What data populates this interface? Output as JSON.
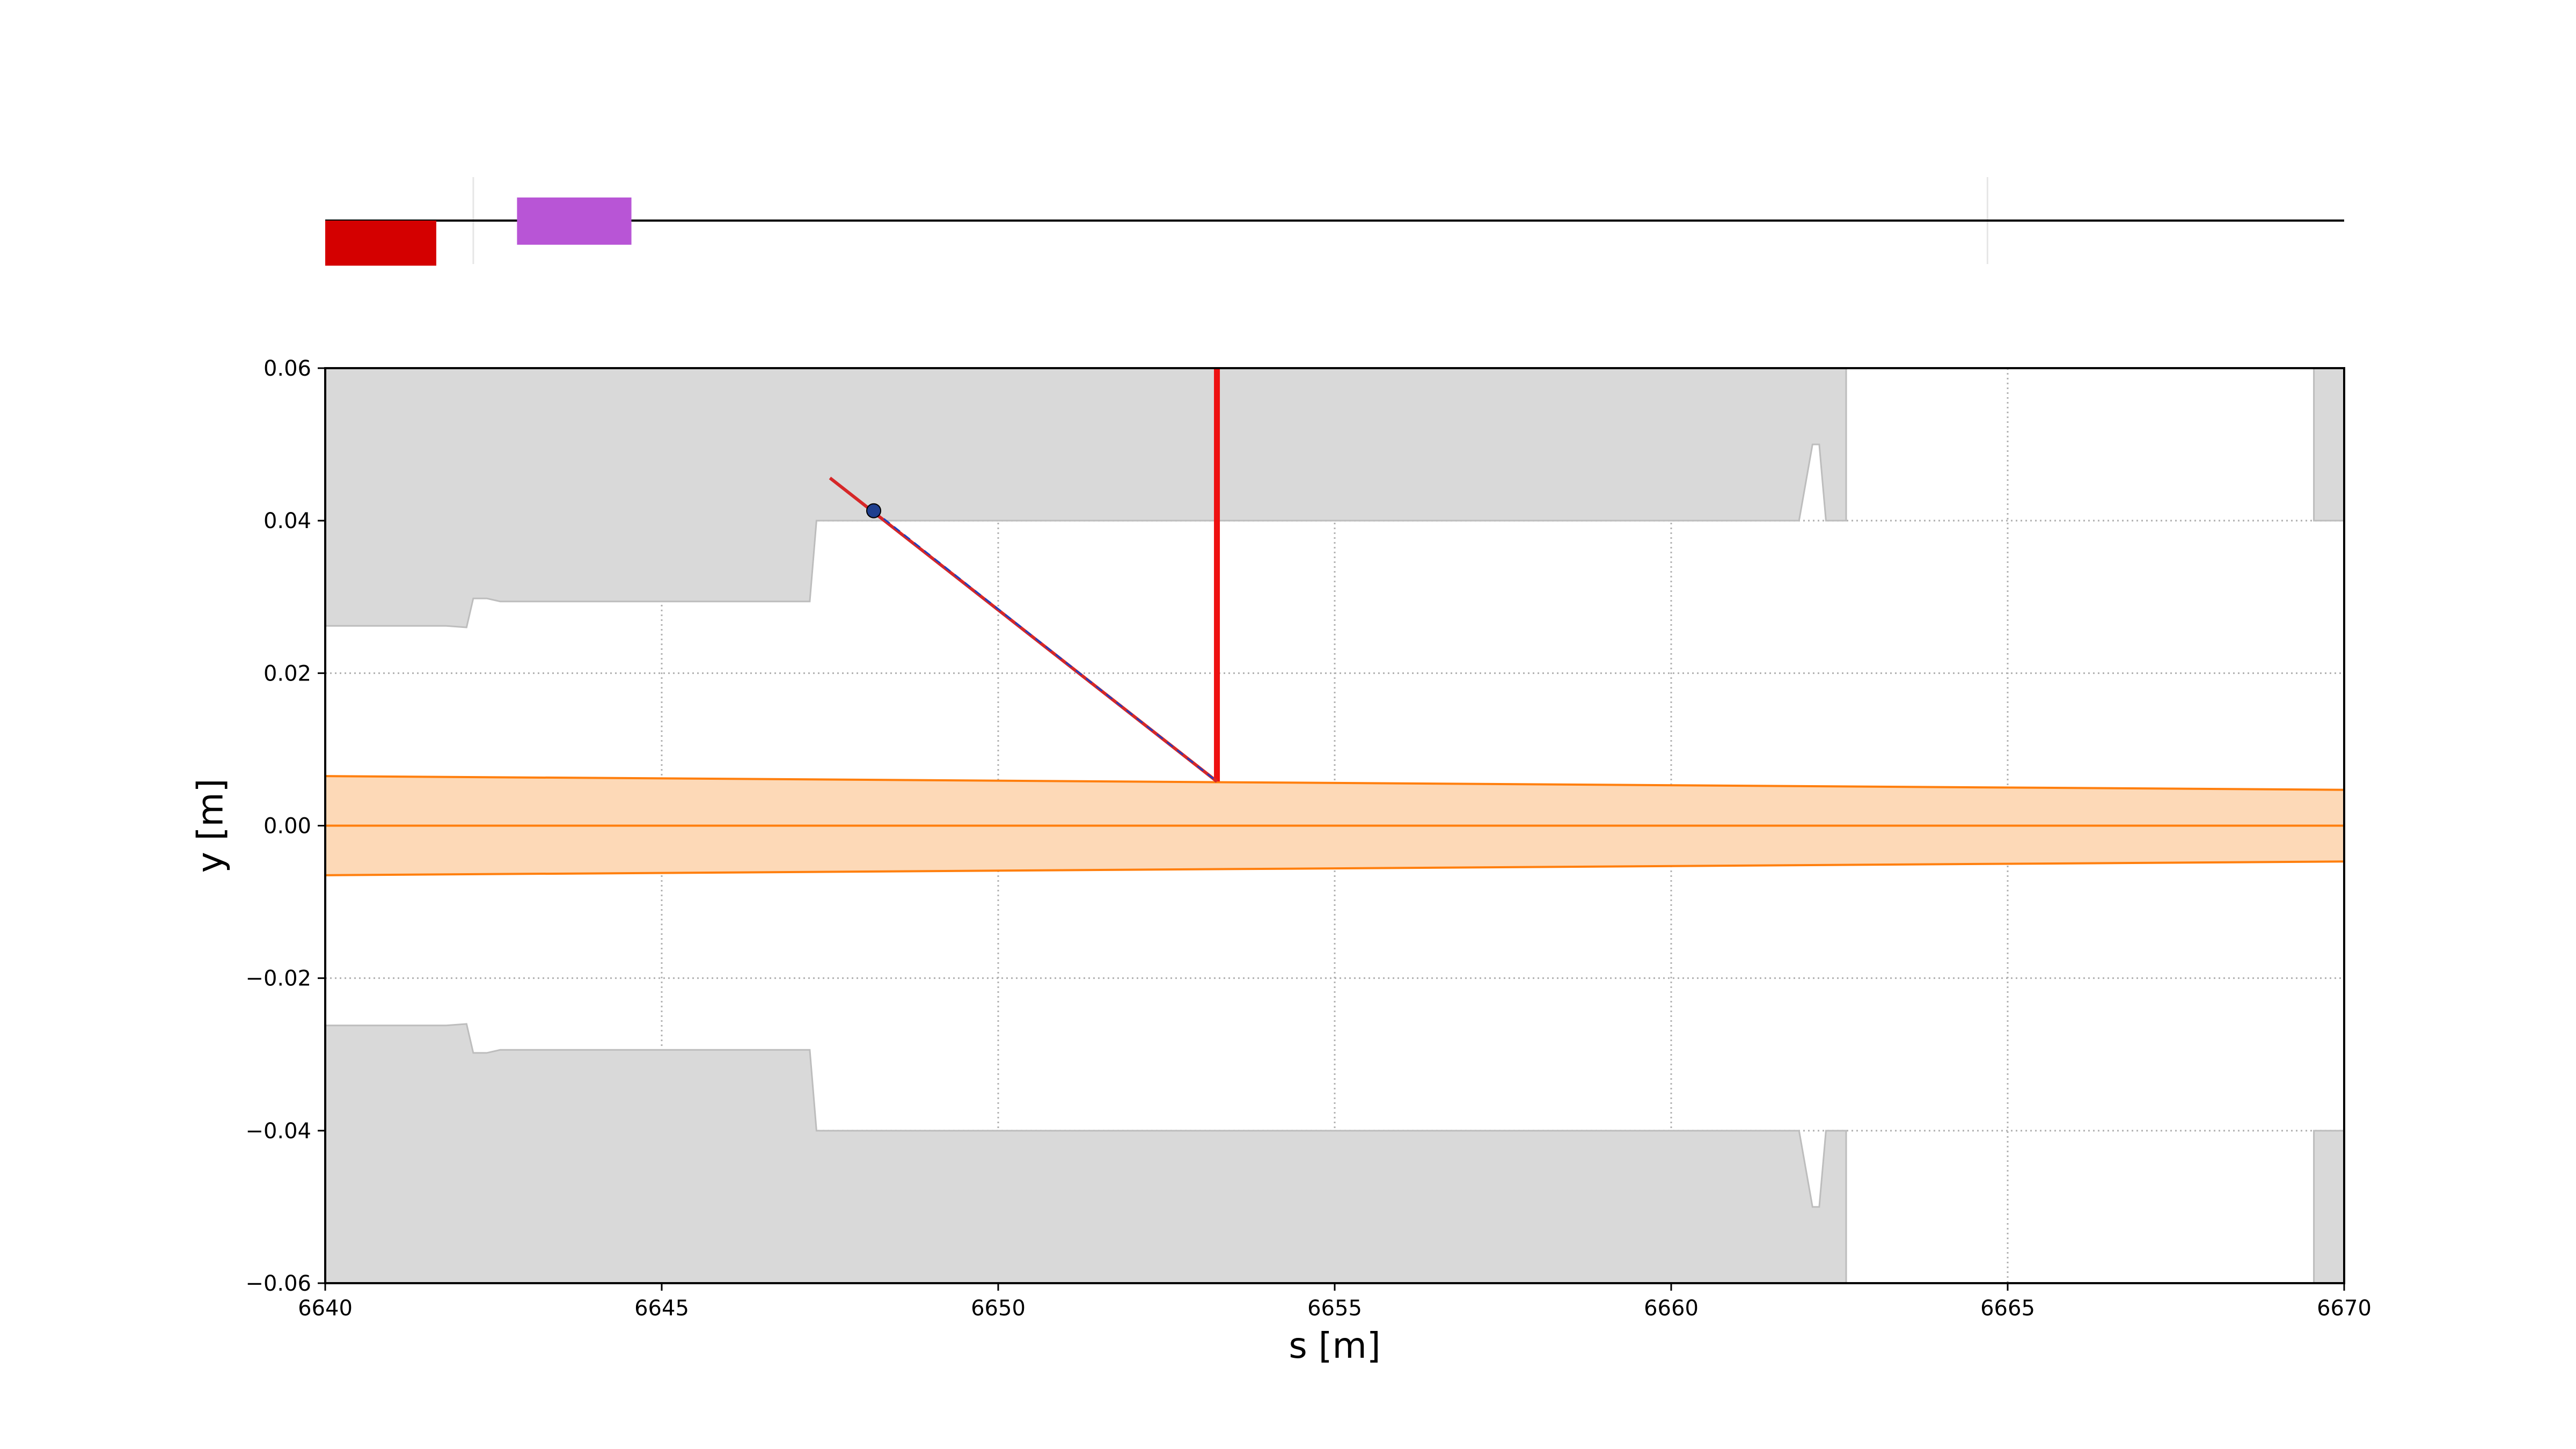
{
  "chart_data": [
    {
      "type": "schematic",
      "x_range": [
        6640,
        6670
      ],
      "elements": [
        {
          "name": "dipole",
          "s_start": 6640.0,
          "s_end": 6641.65,
          "side": "below",
          "color": "#d40000"
        },
        {
          "name": "sextupole",
          "s_start": 6642.85,
          "s_end": 6644.55,
          "side": "centered",
          "color": "#b855d6"
        }
      ],
      "markers": [
        6642.2,
        6664.7
      ],
      "colors": {
        "line": "#000000",
        "marker": "#e6e6e6"
      }
    },
    {
      "type": "area",
      "xlabel": "s [m]",
      "ylabel": "y [m]",
      "xlim": [
        6640,
        6670
      ],
      "ylim": [
        -0.06,
        0.06
      ],
      "xticks": [
        6640,
        6645,
        6650,
        6655,
        6660,
        6665,
        6670
      ],
      "yticks": [
        -0.06,
        -0.04,
        -0.02,
        0.0,
        0.02,
        0.04,
        0.06
      ],
      "xtick_labels": [
        "6640",
        "6645",
        "6650",
        "6655",
        "6660",
        "6665",
        "6670"
      ],
      "ytick_labels": [
        "−0.06",
        "−0.04",
        "−0.02",
        "0.00",
        "0.02",
        "0.04",
        "0.06"
      ],
      "grid": true,
      "aperture_upper": {
        "s": [
          6640,
          6641.8,
          6642.1,
          6642.2,
          6642.4,
          6642.6,
          6644.6,
          6647.2,
          6647.3,
          6661.9,
          6662.1,
          6662.2,
          6662.3,
          6662.6
        ],
        "y": [
          0.0262,
          0.0262,
          0.026,
          0.0298,
          0.0298,
          0.0294,
          0.0294,
          0.0294,
          0.04,
          0.04,
          0.05,
          0.05,
          0.04,
          0.04
        ]
      },
      "aperture_right_upper": {
        "s": [
          6669.55,
          6670
        ],
        "y": [
          0.04,
          0.04
        ]
      },
      "beam_envelope": {
        "s": [
          6640,
          6670
        ],
        "upper": [
          0.0065,
          0.0047
        ],
        "lower": [
          -0.0065,
          -0.0047
        ]
      },
      "closed_orbit": {
        "s": [
          6640,
          6670
        ],
        "y": [
          0.0,
          0.0
        ]
      },
      "trajectory": {
        "s": [
          6647.5,
          6653.25
        ],
        "y": [
          0.0456,
          0.0058
        ]
      },
      "trajectory_point": {
        "s": 6648.15,
        "y": 0.0413
      },
      "vertical_line": {
        "s": 6653.25,
        "y_from": 0.0058,
        "y_to": 0.06
      },
      "colors": {
        "aperture": "#d9d9d9",
        "aperture_edge": "#bdbdbd",
        "envelope_fill": "#fdd9b7",
        "envelope_edge": "#ff7f0e",
        "orbit": "#ff7f0e",
        "trajectory": "#d62728",
        "trajectory_dash": "#1f3fbf",
        "vertical_line": "#ee1111",
        "point": "#1f3f8f"
      }
    }
  ]
}
